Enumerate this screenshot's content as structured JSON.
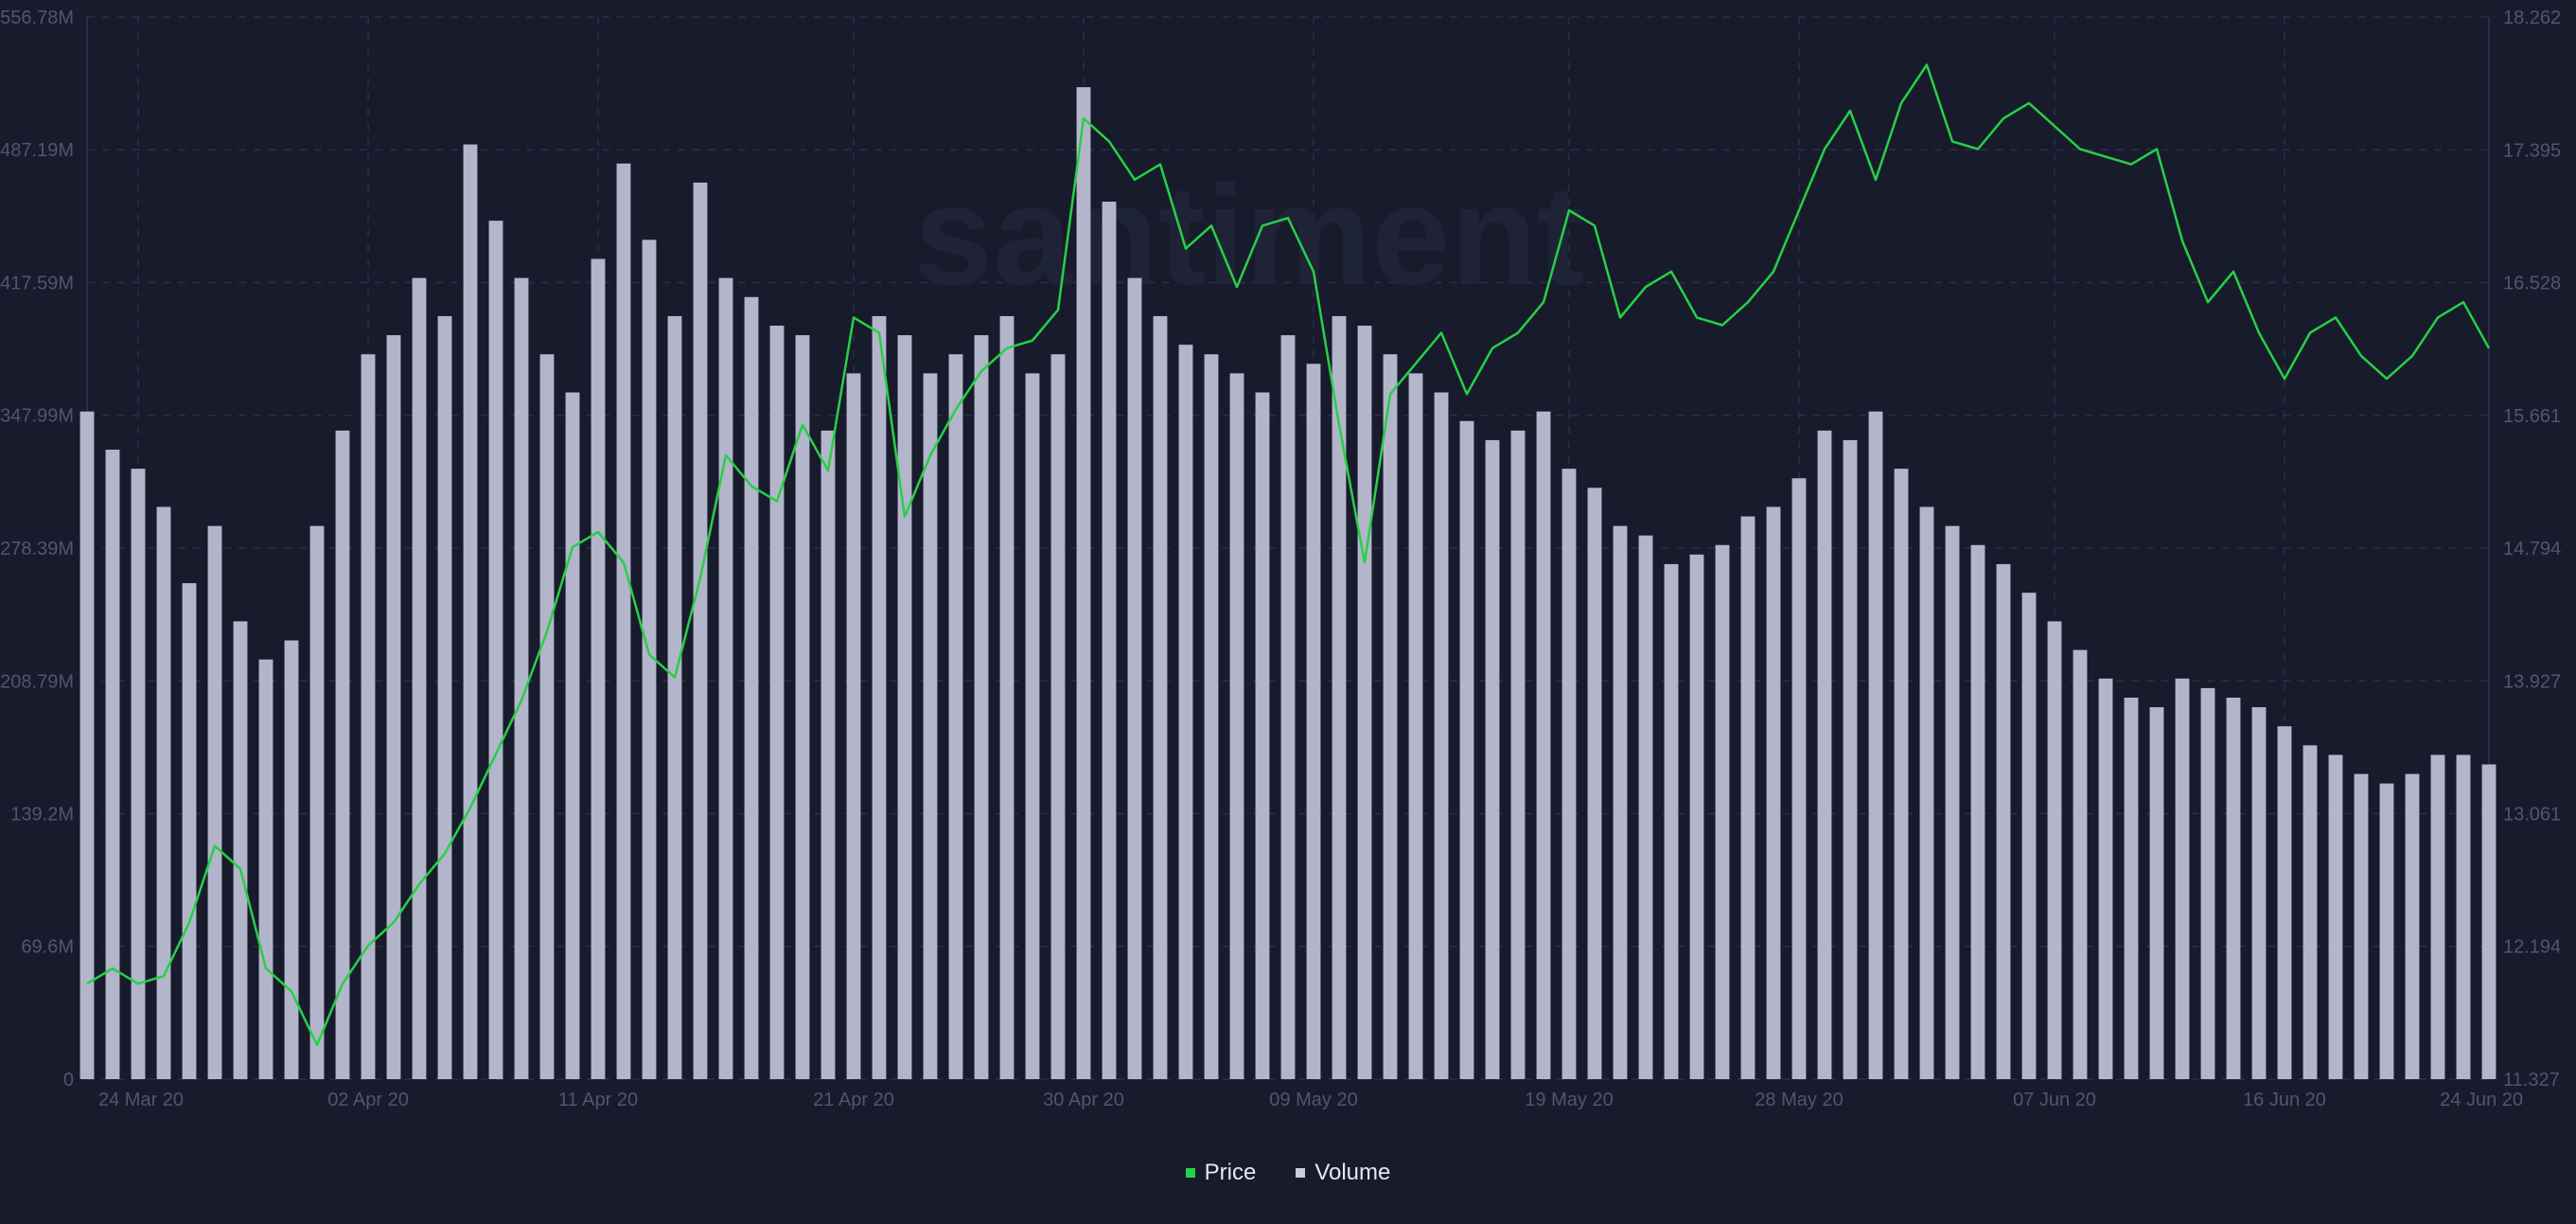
{
  "colors": {
    "background": "#181b2c",
    "grid": "#2a2f45",
    "axis_text": "#4f5670",
    "price": "#26d046",
    "volume": "#b3b6cb"
  },
  "legend": [
    {
      "label": "Price",
      "color": "#26d046"
    },
    {
      "label": "Volume",
      "color": "#c9ccdc"
    }
  ],
  "chart_data": {
    "type": "line+bar",
    "x_range": [
      "2020-03-22",
      "2020-06-24"
    ],
    "x_ticks": [
      {
        "date": "2020-03-24",
        "label": "24 Mar 20"
      },
      {
        "date": "2020-04-02",
        "label": "02 Apr 20"
      },
      {
        "date": "2020-04-11",
        "label": "11 Apr 20"
      },
      {
        "date": "2020-04-21",
        "label": "21 Apr 20"
      },
      {
        "date": "2020-04-30",
        "label": "30 Apr 20"
      },
      {
        "date": "2020-05-09",
        "label": "09 May 20"
      },
      {
        "date": "2020-05-19",
        "label": "19 May 20"
      },
      {
        "date": "2020-05-28",
        "label": "28 May 20"
      },
      {
        "date": "2020-06-07",
        "label": "07 Jun 20"
      },
      {
        "date": "2020-06-16",
        "label": "16 Jun 20"
      },
      {
        "date": "2020-06-24",
        "label": "24 Jun 20"
      }
    ],
    "y_left": {
      "series": "Volume",
      "range": [
        0,
        556780000
      ],
      "tick_labels": [
        "0",
        "69.6M",
        "139.2M",
        "208.79M",
        "278.39M",
        "347.99M",
        "417.59M",
        "487.19M",
        "556.78M"
      ],
      "tick_values": [
        0,
        69600000,
        139200000,
        208790000,
        278390000,
        347990000,
        417590000,
        487190000,
        556780000
      ]
    },
    "y_right": {
      "series": "Price",
      "range": [
        11.327,
        18.262
      ],
      "tick_labels": [
        "11.327",
        "12.194",
        "13.061",
        "13.927",
        "14.794",
        "15.661",
        "16.528",
        "17.395",
        "18.262"
      ],
      "tick_values": [
        11.327,
        12.194,
        13.061,
        13.927,
        14.794,
        15.661,
        16.528,
        17.395,
        18.262
      ]
    },
    "grid": true,
    "legend_position": "bottom-center",
    "series": [
      {
        "name": "Price",
        "type": "line",
        "axis": "right",
        "x": [
          "2020-03-22",
          "2020-03-23",
          "2020-03-24",
          "2020-03-25",
          "2020-03-26",
          "2020-03-27",
          "2020-03-28",
          "2020-03-29",
          "2020-03-30",
          "2020-03-31",
          "2020-04-01",
          "2020-04-02",
          "2020-04-03",
          "2020-04-04",
          "2020-04-05",
          "2020-04-06",
          "2020-04-07",
          "2020-04-08",
          "2020-04-09",
          "2020-04-10",
          "2020-04-11",
          "2020-04-12",
          "2020-04-13",
          "2020-04-14",
          "2020-04-15",
          "2020-04-16",
          "2020-04-17",
          "2020-04-18",
          "2020-04-19",
          "2020-04-20",
          "2020-04-21",
          "2020-04-22",
          "2020-04-23",
          "2020-04-24",
          "2020-04-25",
          "2020-04-26",
          "2020-04-27",
          "2020-04-28",
          "2020-04-29",
          "2020-04-30",
          "2020-05-01",
          "2020-05-02",
          "2020-05-03",
          "2020-05-04",
          "2020-05-05",
          "2020-05-06",
          "2020-05-07",
          "2020-05-08",
          "2020-05-09",
          "2020-05-10",
          "2020-05-11",
          "2020-05-12",
          "2020-05-13",
          "2020-05-14",
          "2020-05-15",
          "2020-05-16",
          "2020-05-17",
          "2020-05-18",
          "2020-05-19",
          "2020-05-20",
          "2020-05-21",
          "2020-05-22",
          "2020-05-23",
          "2020-05-24",
          "2020-05-25",
          "2020-05-26",
          "2020-05-27",
          "2020-05-28",
          "2020-05-29",
          "2020-05-30",
          "2020-05-31",
          "2020-06-01",
          "2020-06-02",
          "2020-06-03",
          "2020-06-04",
          "2020-06-05",
          "2020-06-06",
          "2020-06-07",
          "2020-06-08",
          "2020-06-09",
          "2020-06-10",
          "2020-06-11",
          "2020-06-12",
          "2020-06-13",
          "2020-06-14",
          "2020-06-15",
          "2020-06-16",
          "2020-06-17",
          "2020-06-18",
          "2020-06-19",
          "2020-06-20",
          "2020-06-21",
          "2020-06-22",
          "2020-06-23",
          "2020-06-24"
        ],
        "values": [
          11.95,
          12.05,
          11.95,
          12.0,
          12.35,
          12.85,
          12.7,
          12.05,
          11.9,
          11.55,
          11.95,
          12.2,
          12.35,
          12.6,
          12.8,
          13.1,
          13.45,
          13.8,
          14.25,
          14.8,
          14.9,
          14.7,
          14.1,
          13.95,
          14.6,
          15.4,
          15.2,
          15.1,
          15.6,
          15.3,
          16.3,
          16.2,
          15.0,
          15.4,
          15.7,
          15.95,
          16.1,
          16.15,
          16.35,
          17.6,
          17.45,
          17.2,
          17.3,
          16.75,
          16.9,
          16.5,
          16.9,
          16.95,
          16.6,
          15.6,
          14.7,
          15.8,
          16.0,
          16.2,
          15.8,
          16.1,
          16.2,
          16.4,
          17.0,
          16.9,
          16.3,
          16.5,
          16.6,
          16.3,
          16.25,
          16.4,
          16.6,
          17.0,
          17.4,
          17.65,
          17.2,
          17.7,
          17.95,
          17.45,
          17.4,
          17.6,
          17.7,
          17.55,
          17.4,
          17.35,
          17.3,
          17.4,
          16.8,
          16.4,
          16.6,
          16.2,
          15.9,
          16.2,
          16.3,
          16.05,
          15.9,
          16.05,
          16.3,
          16.4,
          16.1
        ],
        "color": "#26d046"
      },
      {
        "name": "Volume",
        "type": "bar",
        "axis": "left",
        "x": [
          "2020-03-22",
          "2020-03-23",
          "2020-03-24",
          "2020-03-25",
          "2020-03-26",
          "2020-03-27",
          "2020-03-28",
          "2020-03-29",
          "2020-03-30",
          "2020-03-31",
          "2020-04-01",
          "2020-04-02",
          "2020-04-03",
          "2020-04-04",
          "2020-04-05",
          "2020-04-06",
          "2020-04-07",
          "2020-04-08",
          "2020-04-09",
          "2020-04-10",
          "2020-04-11",
          "2020-04-12",
          "2020-04-13",
          "2020-04-14",
          "2020-04-15",
          "2020-04-16",
          "2020-04-17",
          "2020-04-18",
          "2020-04-19",
          "2020-04-20",
          "2020-04-21",
          "2020-04-22",
          "2020-04-23",
          "2020-04-24",
          "2020-04-25",
          "2020-04-26",
          "2020-04-27",
          "2020-04-28",
          "2020-04-29",
          "2020-04-30",
          "2020-05-01",
          "2020-05-02",
          "2020-05-03",
          "2020-05-04",
          "2020-05-05",
          "2020-05-06",
          "2020-05-07",
          "2020-05-08",
          "2020-05-09",
          "2020-05-10",
          "2020-05-11",
          "2020-05-12",
          "2020-05-13",
          "2020-05-14",
          "2020-05-15",
          "2020-05-16",
          "2020-05-17",
          "2020-05-18",
          "2020-05-19",
          "2020-05-20",
          "2020-05-21",
          "2020-05-22",
          "2020-05-23",
          "2020-05-24",
          "2020-05-25",
          "2020-05-26",
          "2020-05-27",
          "2020-05-28",
          "2020-05-29",
          "2020-05-30",
          "2020-05-31",
          "2020-06-01",
          "2020-06-02",
          "2020-06-03",
          "2020-06-04",
          "2020-06-05",
          "2020-06-06",
          "2020-06-07",
          "2020-06-08",
          "2020-06-09",
          "2020-06-10",
          "2020-06-11",
          "2020-06-12",
          "2020-06-13",
          "2020-06-14",
          "2020-06-15",
          "2020-06-16",
          "2020-06-17",
          "2020-06-18",
          "2020-06-19",
          "2020-06-20",
          "2020-06-21",
          "2020-06-22",
          "2020-06-23",
          "2020-06-24"
        ],
        "values": [
          350,
          330,
          320,
          300,
          260,
          290,
          240,
          220,
          230,
          290,
          340,
          380,
          390,
          420,
          400,
          490,
          450,
          420,
          380,
          360,
          430,
          480,
          440,
          400,
          470,
          420,
          410,
          395,
          390,
          340,
          370,
          400,
          390,
          370,
          380,
          390,
          400,
          370,
          380,
          520,
          460,
          420,
          400,
          385,
          380,
          370,
          360,
          390,
          375,
          400,
          395,
          380,
          370,
          360,
          345,
          335,
          340,
          350,
          320,
          310,
          290,
          285,
          270,
          275,
          280,
          295,
          300,
          315,
          340,
          335,
          350,
          320,
          300,
          290,
          280,
          270,
          255,
          240,
          225,
          210,
          200,
          195,
          210,
          205,
          200,
          195,
          185,
          175,
          170,
          160,
          155,
          160,
          170,
          170,
          165
        ],
        "values_unit": "M",
        "color": "#b3b6cb"
      }
    ],
    "watermark": "santiment"
  }
}
